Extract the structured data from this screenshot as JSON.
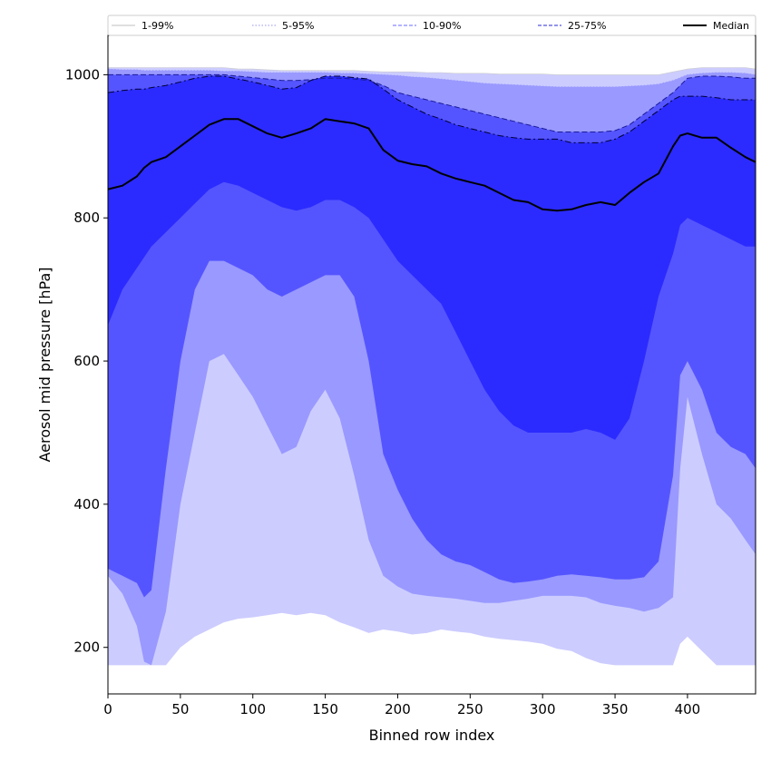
{
  "chart_data": {
    "type": "area",
    "xlabel": "Binned row index",
    "ylabel": "Aerosol mid pressure [hPa]",
    "xlim": [
      0,
      447
    ],
    "ylim": [
      135,
      1055
    ],
    "x_ticks": [
      0,
      50,
      100,
      150,
      200,
      250,
      300,
      350,
      400
    ],
    "y_ticks": [
      200,
      400,
      600,
      800,
      1000
    ],
    "grid": false,
    "legend_position": "top, above plot",
    "x": [
      0,
      10,
      20,
      25,
      30,
      40,
      50,
      60,
      70,
      80,
      90,
      100,
      110,
      120,
      130,
      140,
      150,
      160,
      170,
      180,
      190,
      200,
      210,
      220,
      230,
      240,
      250,
      260,
      270,
      280,
      290,
      300,
      310,
      320,
      330,
      340,
      350,
      360,
      370,
      380,
      390,
      395,
      400,
      410,
      420,
      430,
      440,
      447
    ],
    "bands": [
      {
        "name": "1-99%",
        "color": "#ccccff",
        "lower": [
          175,
          175,
          175,
          175,
          175,
          175,
          200,
          215,
          225,
          235,
          240,
          242,
          245,
          248,
          245,
          248,
          245,
          235,
          228,
          220,
          225,
          222,
          218,
          220,
          225,
          222,
          220,
          215,
          212,
          210,
          208,
          205,
          198,
          195,
          185,
          178,
          175,
          175,
          175,
          175,
          175,
          205,
          215,
          195,
          175,
          175,
          175,
          175
        ],
        "upper": [
          1010,
          1010,
          1010,
          1010,
          1010,
          1010,
          1010,
          1010,
          1010,
          1010,
          1008,
          1008,
          1007,
          1006,
          1006,
          1006,
          1006,
          1006,
          1006,
          1005,
          1004,
          1004,
          1004,
          1003,
          1003,
          1002,
          1002,
          1002,
          1001,
          1001,
          1001,
          1001,
          1000,
          1000,
          1000,
          1000,
          1000,
          1000,
          1000,
          1000,
          1004,
          1006,
          1008,
          1010,
          1010,
          1010,
          1010,
          1008
        ]
      },
      {
        "name": "5-95%",
        "color": "#9999ff",
        "lower": [
          300,
          275,
          230,
          180,
          175,
          250,
          400,
          500,
          600,
          610,
          580,
          550,
          510,
          470,
          480,
          530,
          560,
          520,
          440,
          350,
          300,
          285,
          275,
          272,
          270,
          268,
          265,
          262,
          262,
          265,
          268,
          272,
          272,
          272,
          270,
          262,
          258,
          255,
          250,
          255,
          270,
          450,
          550,
          470,
          400,
          380,
          350,
          330
        ],
        "upper": [
          1008,
          1007,
          1007,
          1006,
          1006,
          1006,
          1006,
          1006,
          1006,
          1005,
          1005,
          1004,
          1003,
          1003,
          1003,
          1003,
          1003,
          1002,
          1002,
          1001,
          1000,
          999,
          997,
          996,
          994,
          992,
          990,
          988,
          987,
          986,
          985,
          984,
          983,
          983,
          983,
          983,
          983,
          984,
          985,
          987,
          992,
          996,
          1000,
          1002,
          1003,
          1003,
          1002,
          1000
        ]
      },
      {
        "name": "10-90%",
        "color": "#5555ff",
        "lower": [
          310,
          300,
          290,
          270,
          280,
          450,
          600,
          700,
          740,
          740,
          730,
          720,
          700,
          690,
          700,
          710,
          720,
          720,
          690,
          600,
          470,
          420,
          380,
          350,
          330,
          320,
          315,
          305,
          295,
          290,
          292,
          295,
          300,
          302,
          300,
          298,
          295,
          295,
          298,
          320,
          440,
          580,
          600,
          560,
          500,
          480,
          470,
          450
        ],
        "upper": [
          1000,
          1000,
          1000,
          1000,
          1000,
          1000,
          1000,
          1000,
          1000,
          1000,
          998,
          996,
          994,
          992,
          992,
          993,
          995,
          995,
          994,
          992,
          985,
          975,
          970,
          965,
          960,
          955,
          950,
          945,
          940,
          935,
          930,
          925,
          920,
          920,
          920,
          920,
          922,
          930,
          945,
          960,
          975,
          985,
          995,
          998,
          998,
          997,
          995,
          995
        ]
      },
      {
        "name": "25-75%",
        "color": "#2b2bff",
        "lower": [
          650,
          700,
          730,
          745,
          760,
          780,
          800,
          820,
          840,
          850,
          845,
          835,
          825,
          815,
          810,
          815,
          825,
          825,
          815,
          800,
          770,
          740,
          720,
          700,
          680,
          640,
          600,
          560,
          530,
          510,
          500,
          500,
          500,
          500,
          505,
          500,
          490,
          520,
          600,
          690,
          750,
          790,
          800,
          790,
          780,
          770,
          760,
          760
        ],
        "upper": [
          975,
          978,
          980,
          980,
          982,
          985,
          990,
          995,
          998,
          998,
          994,
          990,
          985,
          980,
          982,
          992,
          998,
          998,
          996,
          994,
          980,
          965,
          955,
          945,
          938,
          930,
          925,
          920,
          915,
          912,
          910,
          910,
          910,
          905,
          905,
          905,
          910,
          920,
          935,
          950,
          965,
          970,
          970,
          970,
          968,
          965,
          965,
          965
        ]
      }
    ],
    "series": [
      {
        "name": "Median",
        "color": "#000000",
        "values": [
          840,
          845,
          858,
          870,
          878,
          885,
          900,
          915,
          930,
          938,
          938,
          928,
          918,
          912,
          918,
          925,
          938,
          935,
          932,
          925,
          895,
          880,
          875,
          872,
          862,
          855,
          850,
          845,
          835,
          825,
          822,
          812,
          810,
          812,
          818,
          822,
          818,
          835,
          850,
          862,
          900,
          915,
          918,
          912,
          912,
          898,
          885,
          878
        ]
      }
    ],
    "band_outlines": [
      {
        "band": "1-99%",
        "style": "solid",
        "color": "#cccccc",
        "width": 0.6
      },
      {
        "band": "5-95%",
        "style": "dotted",
        "color": "#9999ff",
        "width": 0.8
      },
      {
        "band": "10-90%",
        "style": "dashed",
        "color": "#1a1a99",
        "width": 1.0
      },
      {
        "band": "25-75%",
        "style": "dashdot",
        "color": "#000033",
        "width": 1.0
      }
    ],
    "legend": [
      {
        "label": "1-99%",
        "color": "#cccccc",
        "style": "solid"
      },
      {
        "label": "5-95%",
        "color": "#aaaaee",
        "style": "dotted"
      },
      {
        "label": "10-90%",
        "color": "#8888ff",
        "style": "dashed"
      },
      {
        "label": "25-75%",
        "color": "#5555dd",
        "style": "dashed"
      },
      {
        "label": "Median",
        "color": "#000000",
        "style": "solid"
      }
    ]
  }
}
